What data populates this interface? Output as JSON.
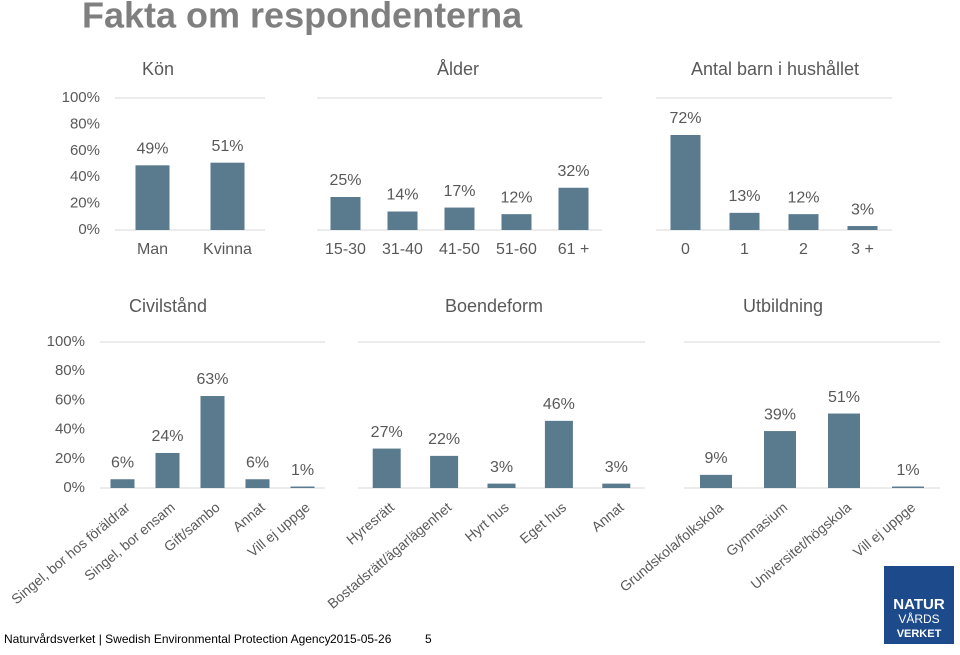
{
  "title": "Fakta om respondenterna",
  "footer": {
    "organization": "Naturvårdsverket | Swedish Environmental Protection Agency",
    "date": "2015-05-26",
    "page": 5
  },
  "logo": [
    "NATUR",
    "VÅRDS",
    "VERKET"
  ],
  "chart_data": [
    {
      "type": "bar",
      "title": "Kön",
      "categories": [
        "Man",
        "Kvinna"
      ],
      "values": [
        49,
        51
      ],
      "value_labels": [
        "49%",
        "51%"
      ],
      "color": "#5a7a8e",
      "ylim": [
        0,
        100
      ],
      "yticks": [
        {
          "value": 0,
          "label": "0%"
        },
        {
          "value": 20,
          "label": "20%"
        },
        {
          "value": 40,
          "label": "40%"
        },
        {
          "value": 60,
          "label": "60%"
        },
        {
          "value": 80,
          "label": "80%"
        },
        {
          "value": 100,
          "label": "100%"
        }
      ]
    },
    {
      "type": "bar",
      "title": "Ålder",
      "categories": [
        "15-30",
        "31-40",
        "41-50",
        "51-60",
        "61 +"
      ],
      "values": [
        25,
        14,
        17,
        12,
        32
      ],
      "value_labels": [
        "25%",
        "14%",
        "17%",
        "12%",
        "32%"
      ],
      "color": "#5a7a8e",
      "ylim": [
        0,
        100
      ]
    },
    {
      "type": "bar",
      "title": "Antal barn i hushållet",
      "categories": [
        "0",
        "1",
        "2",
        "3 +"
      ],
      "values": [
        72,
        13,
        12,
        3
      ],
      "value_labels": [
        "72%",
        "13%",
        "12%",
        "3%"
      ],
      "color": "#5a7a8e",
      "ylim": [
        0,
        100
      ]
    },
    {
      "type": "bar",
      "title": "Civilstånd",
      "categories": [
        "Singel, bor hos föräldrar",
        "Singel, bor ensam",
        "Gift/sambo",
        "Annat",
        "Vill ej uppge"
      ],
      "values": [
        6,
        24,
        63,
        6,
        1
      ],
      "value_labels": [
        "6%",
        "24%",
        "63%",
        "6%",
        "1%"
      ],
      "color": "#5a7a8e",
      "ylim": [
        0,
        100
      ],
      "yticks": [
        {
          "value": 0,
          "label": "0%"
        },
        {
          "value": 20,
          "label": "20%"
        },
        {
          "value": 40,
          "label": "40%"
        },
        {
          "value": 60,
          "label": "60%"
        },
        {
          "value": 80,
          "label": "80%"
        },
        {
          "value": 100,
          "label": "100%"
        }
      ]
    },
    {
      "type": "bar",
      "title": "Boendeform",
      "categories": [
        "Hyresrätt",
        "Bostadsrätt/ägarlägenhet",
        "Hyrt hus",
        "Eget hus",
        "Annat"
      ],
      "values": [
        27,
        22,
        3,
        46,
        3
      ],
      "value_labels": [
        "27%",
        "22%",
        "3%",
        "46%",
        "3%"
      ],
      "color": "#5a7a8e",
      "ylim": [
        0,
        100
      ]
    },
    {
      "type": "bar",
      "title": "Utbildning",
      "categories": [
        "Grundskola/folkskola",
        "Gymnasium",
        "Universitet/högskola",
        "Vill ej uppge"
      ],
      "values": [
        9,
        39,
        51,
        1
      ],
      "value_labels": [
        "9%",
        "39%",
        "51%",
        "1%"
      ],
      "color": "#5a7a8e",
      "ylim": [
        0,
        100
      ]
    }
  ]
}
